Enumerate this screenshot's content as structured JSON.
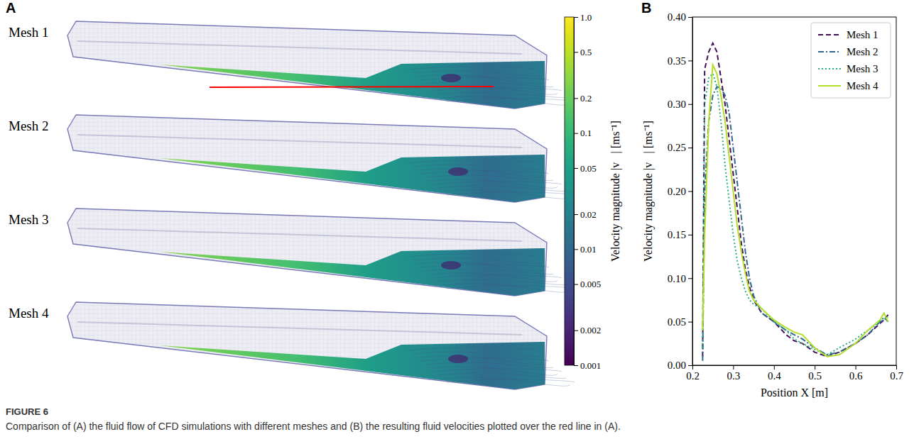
{
  "chart_data": [
    {
      "type": "image",
      "panel": "A",
      "labels": [
        "Mesh 1",
        "Mesh 2",
        "Mesh 3",
        "Mesh 4"
      ],
      "colorbar_label": "Velocity magnitude |v⃗| [ms⁻¹]",
      "colorbar_range": [
        0.001,
        1
      ],
      "colorbar_ticks": [
        {
          "value": 1,
          "label": "1.0"
        },
        0.5,
        0.2,
        0.1,
        0.05,
        0.02,
        0.01,
        0.005,
        0.002,
        0.001
      ],
      "log": true
    },
    {
      "type": "line",
      "panel": "B",
      "x_label": "Position X [m]",
      "y_label": "Velocity magnitude |v⃗| [ms⁻¹]",
      "x": [
        0.225,
        0.23,
        0.24,
        0.25,
        0.26,
        0.27,
        0.28,
        0.29,
        0.3,
        0.31,
        0.32,
        0.33,
        0.34,
        0.35,
        0.37,
        0.4,
        0.43,
        0.45,
        0.47,
        0.5,
        0.53,
        0.56,
        0.6,
        0.63,
        0.66,
        0.67,
        0.68
      ],
      "series": [
        {
          "name": "Mesh 1",
          "color": "#440f57",
          "line_style": "dashed",
          "values": [
            0.01,
            0.34,
            0.36,
            0.37,
            0.36,
            0.33,
            0.3,
            0.26,
            0.22,
            0.18,
            0.14,
            0.11,
            0.09,
            0.075,
            0.06,
            0.05,
            0.035,
            0.028,
            0.025,
            0.015,
            0.01,
            0.015,
            0.025,
            0.035,
            0.048,
            0.052,
            0.058
          ]
        },
        {
          "name": "Mesh 2",
          "color": "#31688e",
          "line_style": "dashdot",
          "values": [
            0.005,
            0.2,
            0.28,
            0.31,
            0.32,
            0.318,
            0.31,
            0.29,
            0.25,
            0.21,
            0.17,
            0.13,
            0.1,
            0.08,
            0.06,
            0.05,
            0.04,
            0.035,
            0.03,
            0.02,
            0.012,
            0.015,
            0.025,
            0.035,
            0.05,
            0.055,
            0.05
          ]
        },
        {
          "name": "Mesh 3",
          "color": "#2aae80",
          "line_style": "dotted",
          "values": [
            0.02,
            0.3,
            0.33,
            0.335,
            0.32,
            0.28,
            0.23,
            0.19,
            0.15,
            0.12,
            0.1,
            0.085,
            0.075,
            0.07,
            0.065,
            0.05,
            0.04,
            0.03,
            0.025,
            0.018,
            0.012,
            0.02,
            0.03,
            0.04,
            0.05,
            0.053,
            0.055
          ]
        },
        {
          "name": "Mesh 4",
          "color": "#b5de2b",
          "line_style": "solid",
          "values": [
            0.04,
            0.15,
            0.28,
            0.345,
            0.335,
            0.31,
            0.28,
            0.24,
            0.2,
            0.16,
            0.13,
            0.105,
            0.085,
            0.075,
            0.065,
            0.052,
            0.043,
            0.038,
            0.035,
            0.02,
            0.01,
            0.012,
            0.025,
            0.04,
            0.052,
            0.06,
            0.05
          ]
        }
      ],
      "xlim": [
        0.2,
        0.7
      ],
      "xticks": [
        0.2,
        0.3,
        0.4,
        0.5,
        0.6,
        0.7
      ],
      "ylim": [
        0,
        0.4
      ],
      "yticks": [
        {
          "value": 0,
          "label": "0.00"
        },
        {
          "value": 0.05,
          "label": "0.05"
        },
        {
          "value": 0.1,
          "label": "0.10"
        },
        {
          "value": 0.15,
          "label": "0.15"
        },
        {
          "value": 0.2,
          "label": "0.20"
        },
        {
          "value": 0.25,
          "label": "0.25"
        },
        {
          "value": 0.3,
          "label": "0.30"
        },
        {
          "value": 0.35,
          "label": "0.35"
        },
        {
          "value": 0.4,
          "label": "0.40"
        }
      ],
      "legend": "upper right"
    }
  ],
  "caption": {
    "label": "FIGURE 6",
    "text": "Comparison of (A) the fluid flow of CFD simulations with different meshes and (B) the resulting fluid velocities plotted over the red line in (A)."
  }
}
